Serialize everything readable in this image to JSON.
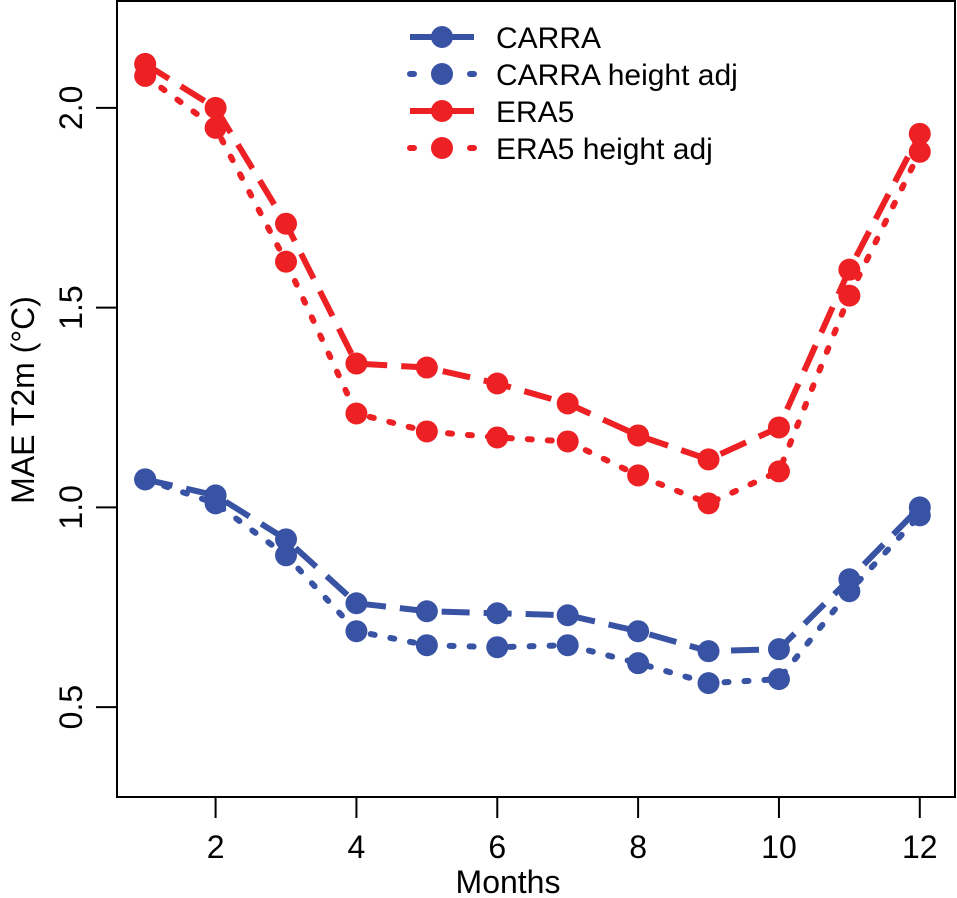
{
  "chart_data": {
    "type": "line",
    "title": "",
    "xlabel": "Months",
    "ylabel": "MAE T2m (°C)",
    "xlim": [
      0.6,
      12.5
    ],
    "ylim": [
      0.275,
      2.2675
    ],
    "xticks": [
      2,
      4,
      6,
      8,
      10,
      12
    ],
    "yticks": [
      0.5,
      1.0,
      1.5,
      2.0
    ],
    "ytick_labels": [
      "0.5",
      "1.0",
      "1.5",
      "2.0"
    ],
    "grid": false,
    "legend_position": "top-center",
    "x": [
      1,
      2,
      3,
      4,
      5,
      6,
      7,
      8,
      9,
      10,
      11,
      12
    ],
    "series": [
      {
        "name": "CARRA",
        "color": "#3953a4",
        "style": "dashed",
        "values": [
          1.07,
          1.03,
          0.92,
          0.76,
          0.74,
          0.735,
          0.73,
          0.69,
          0.64,
          0.645,
          0.82,
          1.0
        ]
      },
      {
        "name": "CARRA height adj",
        "color": "#3953a4",
        "style": "dotted",
        "values": [
          1.07,
          1.01,
          0.88,
          0.69,
          0.655,
          0.65,
          0.655,
          0.61,
          0.56,
          0.57,
          0.79,
          0.98
        ]
      },
      {
        "name": "ERA5",
        "color": "#ed2024",
        "style": "dashed",
        "values": [
          2.11,
          2.0,
          1.71,
          1.36,
          1.35,
          1.31,
          1.26,
          1.18,
          1.12,
          1.2,
          1.595,
          1.935
        ]
      },
      {
        "name": "ERA5 height adj",
        "color": "#ed2024",
        "style": "dotted",
        "values": [
          2.08,
          1.95,
          1.615,
          1.235,
          1.19,
          1.175,
          1.165,
          1.08,
          1.01,
          1.09,
          1.53,
          1.89
        ]
      }
    ]
  }
}
